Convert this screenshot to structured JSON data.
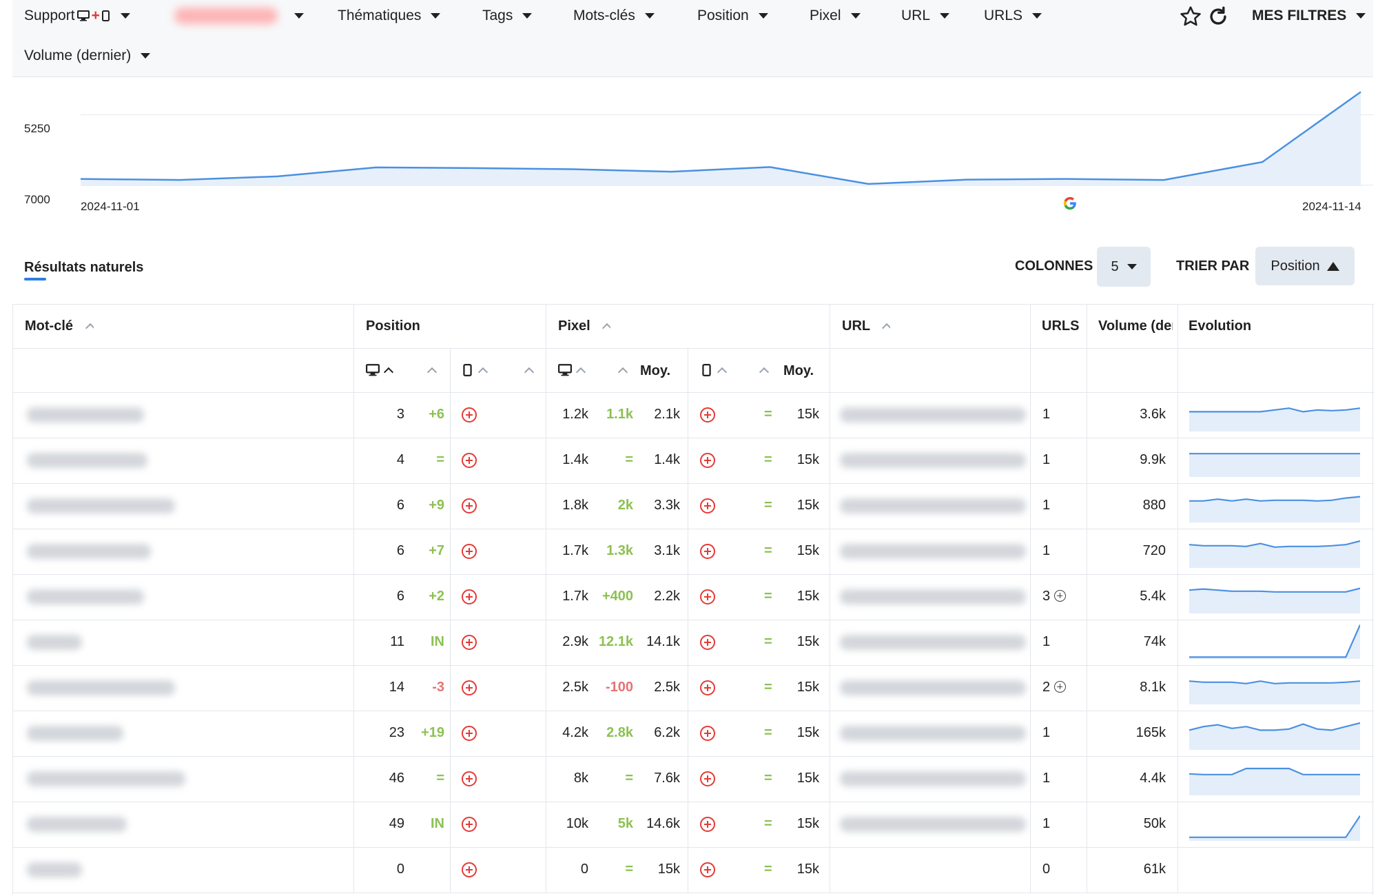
{
  "filters": {
    "support": "Support",
    "thematiques": "Thématiques",
    "tags": "Tags",
    "mots_cles": "Mots-clés",
    "position": "Position",
    "pixel": "Pixel",
    "url": "URL",
    "urls": "URLS",
    "volume": "Volume (dernier)",
    "mes_filtres": "MES FILTRES"
  },
  "chart_data": {
    "type": "line",
    "y_tick_labels": [
      "5250",
      "7000"
    ],
    "x_tick_labels": [
      "2024-11-01",
      "2024-11-14"
    ],
    "y_axis_inverted": true,
    "x": [
      "2024-11-01",
      "2024-11-02",
      "2024-11-03",
      "2024-11-04",
      "2024-11-05",
      "2024-11-06",
      "2024-11-07",
      "2024-11-08",
      "2024-11-09",
      "2024-11-10",
      "2024-11-11",
      "2024-11-12",
      "2024-11-13",
      "2024-11-14"
    ],
    "values": [
      6800,
      6830,
      6730,
      6480,
      6500,
      6530,
      6600,
      6470,
      6940,
      6820,
      6800,
      6830,
      6330,
      4380
    ],
    "ylim": [
      7000,
      4200
    ],
    "fill": true,
    "color": "#4a90e2"
  },
  "section": {
    "tab": "Résultats naturels",
    "colonnes_label": "COLONNES",
    "colonnes_value": "5",
    "trier_label": "TRIER PAR",
    "trier_value": "Position"
  },
  "headers": {
    "keyword": "Mot-clé",
    "position": "Position",
    "pixel": "Pixel",
    "url": "URL",
    "urls": "URLS",
    "volume": "Volume (der",
    "evolution": "Evolution",
    "moy1": "Moy.",
    "moy2": "Moy."
  },
  "rows": [
    {
      "pos": "3",
      "pos_delta": "+6",
      "pos_delta_color": "green",
      "px": "1.2k",
      "px_delta": "1.1k",
      "px_delta_color": "green",
      "px_avg": "2.1k",
      "mob_delta": "=",
      "mob_avg": "15k",
      "urls": "1",
      "urls_plus": false,
      "volume": "3.6k",
      "spark": [
        0.45,
        0.45,
        0.45,
        0.45,
        0.45,
        0.45,
        0.4,
        0.35,
        0.45,
        0.4,
        0.42,
        0.4,
        0.35
      ],
      "has_url": true,
      "kw_w": 170
    },
    {
      "pos": "4",
      "pos_delta": "=",
      "pos_delta_color": "green",
      "px": "1.4k",
      "px_delta": "=",
      "px_delta_color": "green",
      "px_avg": "1.4k",
      "mob_delta": "=",
      "mob_avg": "15k",
      "urls": "1",
      "urls_plus": false,
      "volume": "9.9k",
      "spark": [
        0.35,
        0.35,
        0.35,
        0.35,
        0.35,
        0.35,
        0.35,
        0.35,
        0.35,
        0.35,
        0.35,
        0.35,
        0.35
      ],
      "has_url": true,
      "kw_w": 175
    },
    {
      "pos": "6",
      "pos_delta": "+9",
      "pos_delta_color": "green",
      "px": "1.8k",
      "px_delta": "2k",
      "px_delta_color": "green",
      "px_avg": "3.3k",
      "mob_delta": "=",
      "mob_avg": "15k",
      "urls": "1",
      "urls_plus": false,
      "volume": "880",
      "spark": [
        0.4,
        0.4,
        0.35,
        0.4,
        0.35,
        0.4,
        0.38,
        0.38,
        0.38,
        0.4,
        0.38,
        0.32,
        0.28
      ],
      "has_url": true,
      "kw_w": 215
    },
    {
      "pos": "6",
      "pos_delta": "+7",
      "pos_delta_color": "green",
      "px": "1.7k",
      "px_delta": "1.3k",
      "px_delta_color": "green",
      "px_avg": "3.1k",
      "mob_delta": "=",
      "mob_avg": "15k",
      "urls": "1",
      "urls_plus": false,
      "volume": "720",
      "spark": [
        0.35,
        0.38,
        0.38,
        0.38,
        0.4,
        0.32,
        0.42,
        0.4,
        0.4,
        0.4,
        0.38,
        0.35,
        0.25
      ],
      "has_url": true,
      "kw_w": 180
    },
    {
      "pos": "6",
      "pos_delta": "+2",
      "pos_delta_color": "green",
      "px": "1.7k",
      "px_delta": "+400",
      "px_delta_color": "green",
      "px_avg": "2.2k",
      "mob_delta": "=",
      "mob_avg": "15k",
      "urls": "3",
      "urls_plus": true,
      "volume": "5.4k",
      "spark": [
        0.35,
        0.32,
        0.35,
        0.38,
        0.38,
        0.38,
        0.4,
        0.4,
        0.4,
        0.4,
        0.4,
        0.4,
        0.3
      ],
      "has_url": true,
      "kw_w": 170
    },
    {
      "pos": "11",
      "pos_delta": "IN",
      "pos_delta_color": "green",
      "px": "2.9k",
      "px_delta": "12.1k",
      "px_delta_color": "green",
      "px_avg": "14.1k",
      "mob_delta": "=",
      "mob_avg": "15k",
      "urls": "1",
      "urls_plus": false,
      "volume": "74k",
      "spark": [
        0.95,
        0.95,
        0.95,
        0.95,
        0.95,
        0.95,
        0.95,
        0.95,
        0.95,
        0.95,
        0.95,
        0.95,
        0.05
      ],
      "has_url": true,
      "kw_w": 80
    },
    {
      "pos": "14",
      "pos_delta": "-3",
      "pos_delta_color": "red",
      "px": "2.5k",
      "px_delta": "-100",
      "px_delta_color": "red",
      "px_avg": "2.5k",
      "mob_delta": "=",
      "mob_avg": "15k",
      "urls": "2",
      "urls_plus": true,
      "volume": "8.1k",
      "spark": [
        0.35,
        0.38,
        0.38,
        0.38,
        0.42,
        0.35,
        0.42,
        0.4,
        0.4,
        0.4,
        0.4,
        0.38,
        0.35
      ],
      "has_url": true,
      "kw_w": 215
    },
    {
      "pos": "23",
      "pos_delta": "+19",
      "pos_delta_color": "green",
      "px": "4.2k",
      "px_delta": "2.8k",
      "px_delta_color": "green",
      "px_avg": "6.2k",
      "mob_delta": "=",
      "mob_avg": "15k",
      "urls": "1",
      "urls_plus": false,
      "volume": "165k",
      "spark": [
        0.45,
        0.35,
        0.3,
        0.4,
        0.35,
        0.45,
        0.45,
        0.42,
        0.28,
        0.42,
        0.45,
        0.35,
        0.25
      ],
      "has_url": true,
      "kw_w": 140
    },
    {
      "pos": "46",
      "pos_delta": "=",
      "pos_delta_color": "green",
      "px": "8k",
      "px_delta": "=",
      "px_delta_color": "green",
      "px_avg": "7.6k",
      "mob_delta": "=",
      "mob_avg": "15k",
      "urls": "1",
      "urls_plus": false,
      "volume": "4.4k",
      "spark": [
        0.4,
        0.42,
        0.42,
        0.42,
        0.25,
        0.25,
        0.25,
        0.25,
        0.42,
        0.42,
        0.42,
        0.42,
        0.42
      ],
      "has_url": true,
      "kw_w": 230
    },
    {
      "pos": "49",
      "pos_delta": "IN",
      "pos_delta_color": "green",
      "px": "10k",
      "px_delta": "5k",
      "px_delta_color": "green",
      "px_avg": "14.6k",
      "mob_delta": "=",
      "mob_avg": "15k",
      "urls": "1",
      "urls_plus": false,
      "volume": "50k",
      "spark": [
        0.9,
        0.9,
        0.9,
        0.9,
        0.9,
        0.9,
        0.9,
        0.9,
        0.9,
        0.9,
        0.9,
        0.9,
        0.3
      ],
      "has_url": true,
      "kw_w": 145
    },
    {
      "pos": "0",
      "pos_delta": "",
      "pos_delta_color": "green",
      "px": "0",
      "px_delta": "=",
      "px_delta_color": "green",
      "px_avg": "15k",
      "mob_delta": "=",
      "mob_avg": "15k",
      "urls": "0",
      "urls_plus": false,
      "volume": "61k",
      "spark": null,
      "has_url": false,
      "kw_w": 80
    }
  ]
}
